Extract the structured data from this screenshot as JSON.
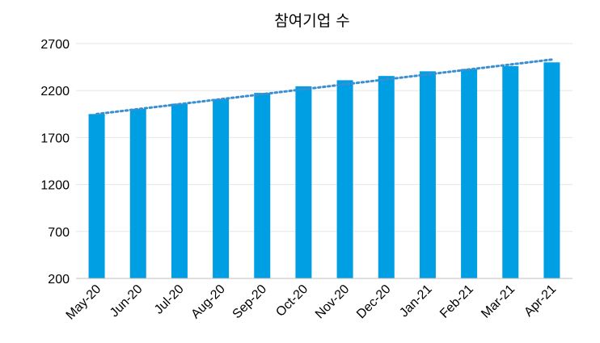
{
  "chart_data": {
    "type": "bar",
    "title": "참여기업 수",
    "xlabel": "",
    "ylabel": "",
    "categories": [
      "May-20",
      "Jun-20",
      "Jul-20",
      "Aug-20",
      "Sep-20",
      "Oct-20",
      "Nov-20",
      "Dec-20",
      "Jan-21",
      "Feb-21",
      "Mar-21",
      "Apr-21"
    ],
    "values": [
      1950,
      2005,
      2060,
      2110,
      2175,
      2245,
      2310,
      2355,
      2405,
      2430,
      2460,
      2500
    ],
    "trendline": {
      "type": "linear",
      "style": "dotted",
      "start": 1950,
      "end": 2530
    },
    "ylim": [
      200,
      2700
    ],
    "yticks": [
      "200",
      "700",
      "1200",
      "1700",
      "2200",
      "2700"
    ],
    "grid": true,
    "legend": "none",
    "colors": {
      "bar": "#009fe3",
      "trend": "#3a8fd0",
      "grid": "#e6e6e6",
      "axis": "#bfbfbf"
    }
  }
}
